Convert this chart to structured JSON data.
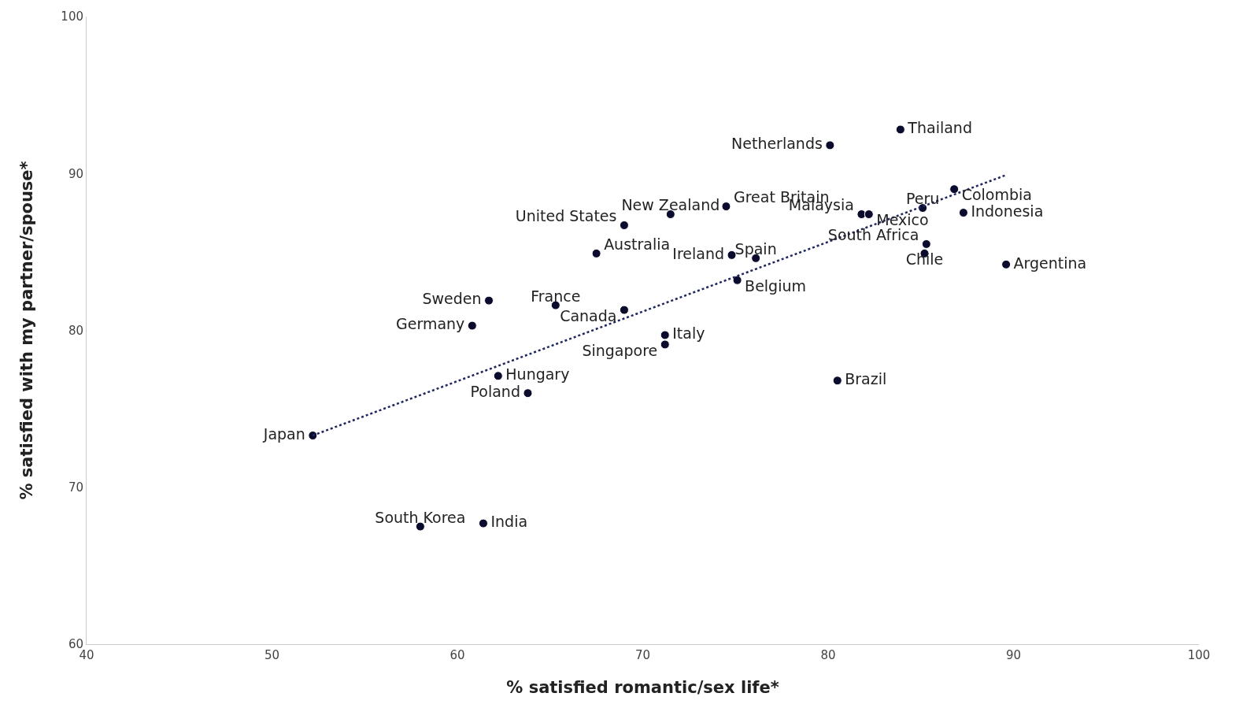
{
  "chart_data": {
    "type": "scatter",
    "xlabel": "% satisfied romantic/sex life*",
    "ylabel": "% satisfied with my partner/spouse*",
    "xlim": [
      40,
      100
    ],
    "xticks": [
      40,
      50,
      60,
      70,
      80,
      90,
      100
    ],
    "ylim": [
      60,
      100
    ],
    "yticks": [
      60,
      70,
      80,
      90,
      100
    ],
    "marker": "circle",
    "series": [
      {
        "color": "#0b0b2e",
        "x": [
          52.2,
          58.0,
          61.4,
          61.7,
          60.8,
          62.2,
          63.8,
          65.3,
          67.5,
          69.0,
          69.0,
          71.5,
          71.2,
          71.2,
          74.5,
          74.8,
          76.1,
          75.1,
          80.1,
          80.5,
          83.9,
          86.8,
          85.1,
          81.8,
          82.2,
          87.3,
          85.3,
          85.2,
          89.6
        ],
        "values": [
          73.3,
          67.5,
          67.7,
          81.9,
          80.3,
          77.1,
          76.0,
          81.6,
          84.9,
          86.7,
          81.3,
          87.4,
          79.7,
          79.1,
          87.9,
          84.8,
          84.6,
          83.2,
          91.8,
          76.8,
          92.8,
          89.0,
          87.8,
          87.4,
          87.4,
          87.5,
          85.5,
          84.9,
          84.2
        ]
      },
      {
        "type": "line",
        "color": "#1f2660",
        "line_style": "dotted",
        "marker": "none",
        "x": [
          52.2,
          89.6
        ],
        "values": [
          73.3,
          89.9
        ]
      }
    ],
    "annotations": [
      {
        "text": "Japan",
        "x": 52.2,
        "y": 73.3
      },
      {
        "text": "South Korea",
        "x": 58.0,
        "y": 67.5
      },
      {
        "text": "India",
        "x": 61.4,
        "y": 67.7
      },
      {
        "text": "Sweden",
        "x": 61.7,
        "y": 81.9
      },
      {
        "text": "Germany",
        "x": 60.8,
        "y": 80.3
      },
      {
        "text": "Hungary",
        "x": 62.2,
        "y": 77.1
      },
      {
        "text": "Poland",
        "x": 63.8,
        "y": 76.0
      },
      {
        "text": "France",
        "x": 65.3,
        "y": 81.6
      },
      {
        "text": "Australia",
        "x": 67.5,
        "y": 84.9
      },
      {
        "text": "United States",
        "x": 69.0,
        "y": 86.7
      },
      {
        "text": "Canada",
        "x": 69.0,
        "y": 81.3
      },
      {
        "text": "New Zealand",
        "x": 71.5,
        "y": 87.4
      },
      {
        "text": "Italy",
        "x": 71.2,
        "y": 79.7
      },
      {
        "text": "Singapore",
        "x": 71.2,
        "y": 79.1
      },
      {
        "text": "Great Britain",
        "x": 74.5,
        "y": 87.9
      },
      {
        "text": "Ireland",
        "x": 74.8,
        "y": 84.8
      },
      {
        "text": "Spain",
        "x": 76.1,
        "y": 84.6
      },
      {
        "text": "Belgium",
        "x": 75.1,
        "y": 83.2
      },
      {
        "text": "Netherlands",
        "x": 80.1,
        "y": 91.8
      },
      {
        "text": "Brazil",
        "x": 80.5,
        "y": 76.8
      },
      {
        "text": "Thailand",
        "x": 83.9,
        "y": 92.8
      },
      {
        "text": "Colombia",
        "x": 86.8,
        "y": 89.0
      },
      {
        "text": "Peru",
        "x": 85.1,
        "y": 87.8
      },
      {
        "text": "Malaysia",
        "x": 81.8,
        "y": 87.4
      },
      {
        "text": "Mexico",
        "x": 82.2,
        "y": 87.4
      },
      {
        "text": "Indonesia",
        "x": 87.3,
        "y": 87.5
      },
      {
        "text": "South Africa",
        "x": 85.3,
        "y": 85.5
      },
      {
        "text": "Chile",
        "x": 85.2,
        "y": 84.9
      },
      {
        "text": "Argentina",
        "x": 89.6,
        "y": 84.2
      }
    ]
  }
}
